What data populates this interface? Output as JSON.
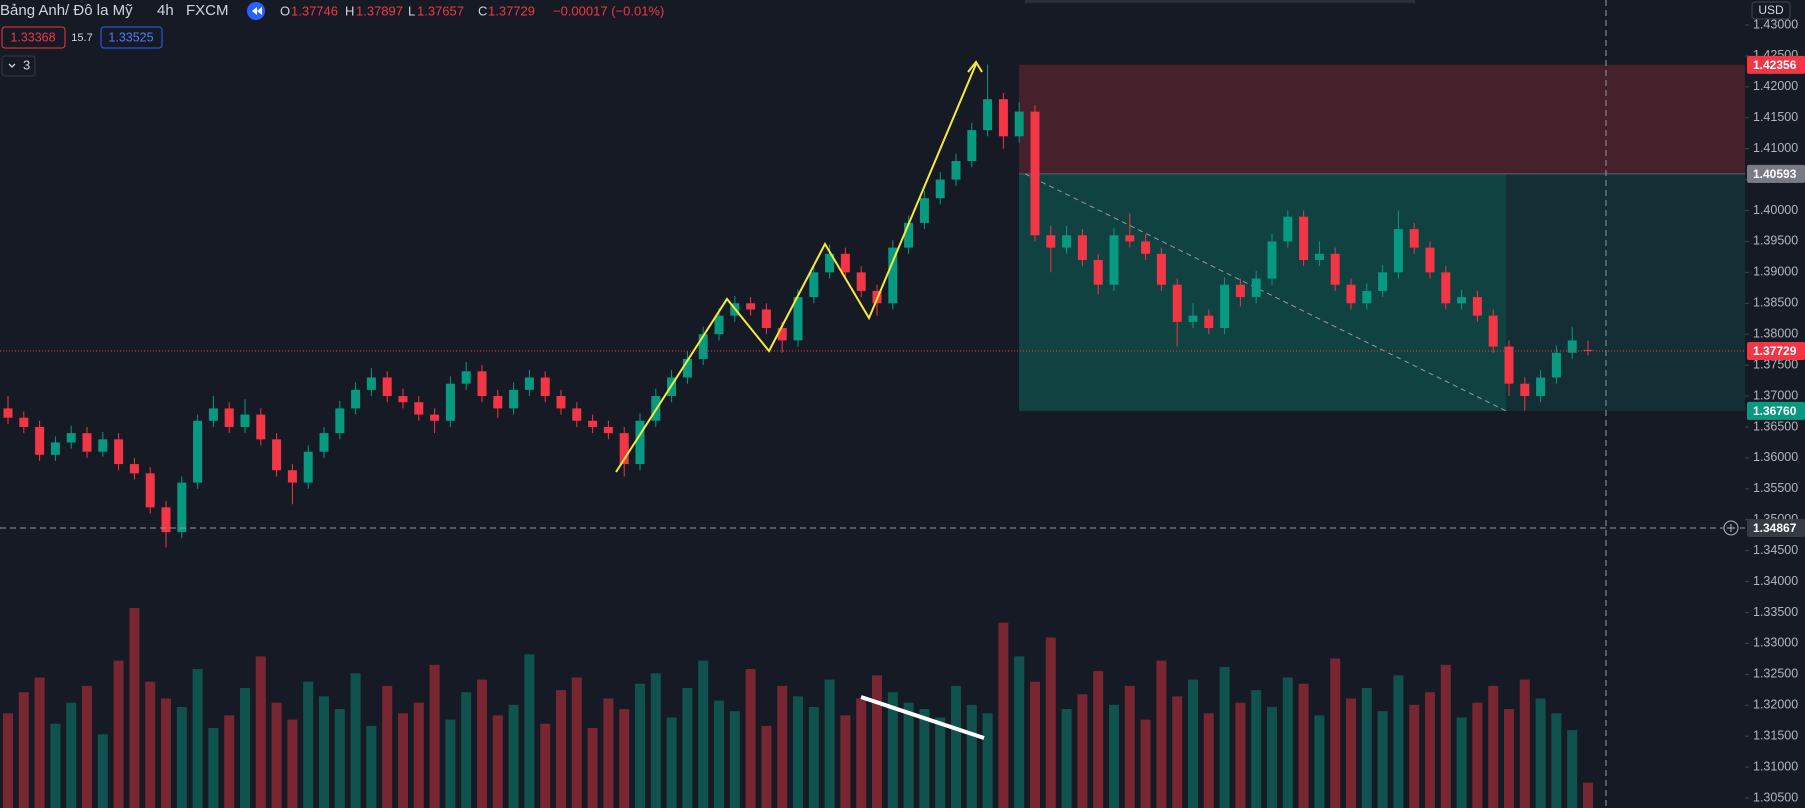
{
  "chart_data": {
    "type": "candlestick",
    "title": "Bảng Anh/ Đô la Mỹ",
    "interval": "4h",
    "source": "FXCM",
    "ohlc_labels": [
      "O",
      "H",
      "L",
      "C"
    ],
    "change": "−0.00017 (−0.01%)",
    "bid": 1.33368,
    "spread": 15.7,
    "ask": 1.33525,
    "indicator_count": 3,
    "currency": "USD",
    "up_color": "#089981",
    "down_color": "#f23645",
    "ylim": [
      1.305,
      1.43
    ],
    "yticks": [
      {
        "value": 1.305,
        "label": "1.30500"
      },
      {
        "value": 1.31,
        "label": "1.31000"
      },
      {
        "value": 1.315,
        "label": "1.31500"
      },
      {
        "value": 1.32,
        "label": "1.32000"
      },
      {
        "value": 1.325,
        "label": "1.32500"
      },
      {
        "value": 1.33,
        "label": "1.33000"
      },
      {
        "value": 1.335,
        "label": "1.33500"
      },
      {
        "value": 1.34,
        "label": "1.34000"
      },
      {
        "value": 1.345,
        "label": "1.34500"
      },
      {
        "value": 1.35,
        "label": "1.35000"
      },
      {
        "value": 1.355,
        "label": "1.35500"
      },
      {
        "value": 1.36,
        "label": "1.36000"
      },
      {
        "value": 1.365,
        "label": "1.36500"
      },
      {
        "value": 1.37,
        "label": "1.37000"
      },
      {
        "value": 1.375,
        "label": "1.37500"
      },
      {
        "value": 1.38,
        "label": "1.38000"
      },
      {
        "value": 1.385,
        "label": "1.38500"
      },
      {
        "value": 1.39,
        "label": "1.39000"
      },
      {
        "value": 1.395,
        "label": "1.39500"
      },
      {
        "value": 1.4,
        "label": "1.40000"
      },
      {
        "value": 1.405,
        "label": "1.40500"
      },
      {
        "value": 1.41,
        "label": "1.41000"
      },
      {
        "value": 1.415,
        "label": "1.41500"
      },
      {
        "value": 1.42,
        "label": "1.42000"
      },
      {
        "value": 1.425,
        "label": "1.42500"
      },
      {
        "value": 1.43,
        "label": "1.43000"
      }
    ],
    "position": {
      "stop": 1.42356,
      "entry": 1.40593,
      "target": {
        "value": 1.3676,
        "label": "1.36760"
      }
    },
    "crosshair": 1.34867,
    "ohlc": [
      [
        1.368,
        1.37,
        1.3655,
        1.3665
      ],
      [
        1.3665,
        1.3675,
        1.364,
        1.365
      ],
      [
        1.365,
        1.366,
        1.3595,
        1.3605
      ],
      [
        1.3605,
        1.3635,
        1.3595,
        1.3625
      ],
      [
        1.3625,
        1.3652,
        1.3615,
        1.364
      ],
      [
        1.364,
        1.365,
        1.36,
        1.361
      ],
      [
        1.361,
        1.3642,
        1.3602,
        1.363
      ],
      [
        1.363,
        1.364,
        1.358,
        1.359
      ],
      [
        1.359,
        1.36,
        1.3565,
        1.3575
      ],
      [
        1.3575,
        1.3585,
        1.351,
        1.352
      ],
      [
        1.352,
        1.353,
        1.3455,
        1.348
      ],
      [
        1.348,
        1.357,
        1.347,
        1.356
      ],
      [
        1.356,
        1.367,
        1.355,
        1.366
      ],
      [
        1.366,
        1.37,
        1.365,
        1.368
      ],
      [
        1.368,
        1.369,
        1.364,
        1.365
      ],
      [
        1.365,
        1.3695,
        1.364,
        1.367
      ],
      [
        1.367,
        1.368,
        1.362,
        1.363
      ],
      [
        1.363,
        1.364,
        1.357,
        1.358
      ],
      [
        1.358,
        1.359,
        1.3525,
        1.356
      ],
      [
        1.356,
        1.362,
        1.355,
        1.361
      ],
      [
        1.361,
        1.365,
        1.36,
        1.364
      ],
      [
        1.364,
        1.3692,
        1.363,
        1.368
      ],
      [
        1.368,
        1.3722,
        1.367,
        1.371
      ],
      [
        1.371,
        1.3745,
        1.37,
        1.373
      ],
      [
        1.373,
        1.374,
        1.369,
        1.37
      ],
      [
        1.37,
        1.3712,
        1.368,
        1.369
      ],
      [
        1.369,
        1.37,
        1.366,
        1.367
      ],
      [
        1.367,
        1.368,
        1.364,
        1.366
      ],
      [
        1.366,
        1.3732,
        1.365,
        1.372
      ],
      [
        1.372,
        1.3755,
        1.371,
        1.374
      ],
      [
        1.374,
        1.375,
        1.369,
        1.37
      ],
      [
        1.37,
        1.371,
        1.3665,
        1.368
      ],
      [
        1.368,
        1.3722,
        1.367,
        1.371
      ],
      [
        1.371,
        1.3742,
        1.37,
        1.373
      ],
      [
        1.373,
        1.374,
        1.369,
        1.37
      ],
      [
        1.37,
        1.371,
        1.367,
        1.368
      ],
      [
        1.368,
        1.369,
        1.365,
        1.366
      ],
      [
        1.366,
        1.367,
        1.364,
        1.365
      ],
      [
        1.365,
        1.366,
        1.363,
        1.364
      ],
      [
        1.364,
        1.365,
        1.357,
        1.359
      ],
      [
        1.359,
        1.3672,
        1.358,
        1.366
      ],
      [
        1.366,
        1.3712,
        1.365,
        1.37
      ],
      [
        1.37,
        1.3742,
        1.369,
        1.373
      ],
      [
        1.373,
        1.3772,
        1.372,
        1.376
      ],
      [
        1.376,
        1.3812,
        1.375,
        1.38
      ],
      [
        1.38,
        1.3842,
        1.379,
        1.383
      ],
      [
        1.383,
        1.3862,
        1.382,
        1.385
      ],
      [
        1.385,
        1.386,
        1.383,
        1.384
      ],
      [
        1.384,
        1.385,
        1.38,
        1.381
      ],
      [
        1.381,
        1.382,
        1.377,
        1.379
      ],
      [
        1.379,
        1.3872,
        1.378,
        1.386
      ],
      [
        1.386,
        1.3912,
        1.385,
        1.39
      ],
      [
        1.39,
        1.3945,
        1.389,
        1.393
      ],
      [
        1.393,
        1.394,
        1.389,
        1.39
      ],
      [
        1.39,
        1.391,
        1.386,
        1.387
      ],
      [
        1.387,
        1.388,
        1.383,
        1.385
      ],
      [
        1.385,
        1.3952,
        1.384,
        1.394
      ],
      [
        1.394,
        1.3992,
        1.393,
        1.398
      ],
      [
        1.398,
        1.4032,
        1.397,
        1.402
      ],
      [
        1.402,
        1.4062,
        1.401,
        1.405
      ],
      [
        1.405,
        1.4092,
        1.404,
        1.408
      ],
      [
        1.408,
        1.4142,
        1.407,
        1.413
      ],
      [
        1.413,
        1.4236,
        1.412,
        1.418
      ],
      [
        1.418,
        1.419,
        1.41,
        1.412
      ],
      [
        1.412,
        1.4175,
        1.411,
        1.416
      ],
      [
        1.416,
        1.417,
        1.395,
        1.396
      ],
      [
        1.396,
        1.3975,
        1.39,
        1.394
      ],
      [
        1.394,
        1.3975,
        1.393,
        1.396
      ],
      [
        1.396,
        1.397,
        1.391,
        1.392
      ],
      [
        1.392,
        1.393,
        1.3865,
        1.388
      ],
      [
        1.388,
        1.3972,
        1.387,
        1.396
      ],
      [
        1.396,
        1.3995,
        1.394,
        1.395
      ],
      [
        1.395,
        1.3962,
        1.392,
        1.393
      ],
      [
        1.393,
        1.394,
        1.387,
        1.388
      ],
      [
        1.388,
        1.389,
        1.378,
        1.382
      ],
      [
        1.382,
        1.385,
        1.381,
        1.383
      ],
      [
        1.383,
        1.384,
        1.38,
        1.381
      ],
      [
        1.381,
        1.3892,
        1.38,
        1.388
      ],
      [
        1.388,
        1.389,
        1.3845,
        1.386
      ],
      [
        1.386,
        1.3902,
        1.385,
        1.389
      ],
      [
        1.389,
        1.3962,
        1.388,
        1.395
      ],
      [
        1.395,
        1.4,
        1.394,
        1.399
      ],
      [
        1.399,
        1.4,
        1.391,
        1.392
      ],
      [
        1.392,
        1.395,
        1.391,
        1.393
      ],
      [
        1.393,
        1.394,
        1.387,
        1.388
      ],
      [
        1.388,
        1.389,
        1.384,
        1.385
      ],
      [
        1.385,
        1.3882,
        1.384,
        1.387
      ],
      [
        1.387,
        1.3912,
        1.386,
        1.39
      ],
      [
        1.39,
        1.4,
        1.389,
        1.397
      ],
      [
        1.397,
        1.398,
        1.393,
        1.394
      ],
      [
        1.394,
        1.395,
        1.389,
        1.39
      ],
      [
        1.39,
        1.391,
        1.384,
        1.385
      ],
      [
        1.385,
        1.3872,
        1.384,
        1.386
      ],
      [
        1.386,
        1.387,
        1.382,
        1.383
      ],
      [
        1.383,
        1.384,
        1.377,
        1.378
      ],
      [
        1.378,
        1.379,
        1.37,
        1.372
      ],
      [
        1.372,
        1.373,
        1.3676,
        1.37
      ],
      [
        1.37,
        1.3742,
        1.369,
        1.373
      ],
      [
        1.373,
        1.3782,
        1.372,
        1.377
      ],
      [
        1.377,
        1.3812,
        1.376,
        1.379
      ],
      [
        1.37746,
        1.37897,
        1.37657,
        1.37729
      ]
    ],
    "volume": [
      45,
      55,
      62,
      40,
      50,
      58,
      35,
      70,
      95,
      60,
      52,
      48,
      66,
      38,
      44,
      57,
      72,
      50,
      42,
      60,
      53,
      47,
      64,
      39,
      58,
      45,
      50,
      68,
      42,
      55,
      61,
      44,
      49,
      73,
      40,
      56,
      62,
      38,
      52,
      47,
      59,
      64,
      43,
      57,
      70,
      51,
      46,
      66,
      39,
      58,
      53,
      48,
      61,
      44,
      52,
      63,
      55,
      50,
      47,
      43,
      58,
      49,
      45,
      88,
      72,
      60,
      81,
      47,
      54,
      65,
      49,
      58,
      42,
      70,
      53,
      61,
      45,
      67,
      50,
      56,
      48,
      62,
      59,
      44,
      71,
      52,
      57,
      46,
      63,
      49,
      55,
      68,
      43,
      50,
      58,
      47,
      61,
      52,
      45,
      37,
      12
    ]
  }
}
